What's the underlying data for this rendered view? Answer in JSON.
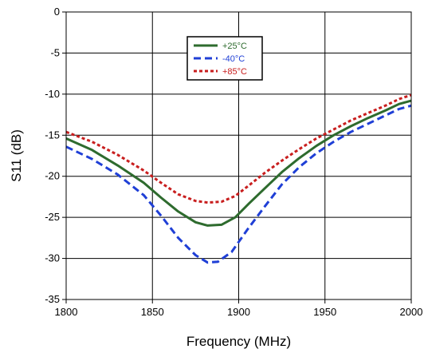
{
  "chart_data": {
    "type": "line",
    "title": "",
    "xlabel": "Frequency (MHz)",
    "ylabel": "S11 (dB)",
    "xlim": [
      1800,
      2000
    ],
    "ylim": [
      -35,
      0
    ],
    "xticks": [
      "1800",
      "1850",
      "1900",
      "1950",
      "2000"
    ],
    "yticks": [
      "0",
      "-5",
      "-10",
      "-15",
      "-20",
      "-25",
      "-30",
      "-35"
    ],
    "grid": true,
    "legend_position": "top-center",
    "series": [
      {
        "name": "+25°C",
        "color": "#2e6b2e",
        "dash": "solid",
        "points": [
          [
            1800,
            -15.4
          ],
          [
            1815,
            -16.8
          ],
          [
            1830,
            -18.7
          ],
          [
            1845,
            -20.8
          ],
          [
            1855,
            -22.6
          ],
          [
            1865,
            -24.3
          ],
          [
            1875,
            -25.6
          ],
          [
            1882,
            -26.0
          ],
          [
            1890,
            -25.9
          ],
          [
            1898,
            -25.0
          ],
          [
            1906,
            -23.3
          ],
          [
            1915,
            -21.5
          ],
          [
            1925,
            -19.5
          ],
          [
            1935,
            -17.8
          ],
          [
            1945,
            -16.3
          ],
          [
            1955,
            -15.0
          ],
          [
            1965,
            -13.9
          ],
          [
            1975,
            -12.9
          ],
          [
            1985,
            -12.0
          ],
          [
            1993,
            -11.2
          ],
          [
            2000,
            -10.8
          ]
        ]
      },
      {
        "name": "-40°C",
        "color": "#1f3fd6",
        "dash": "dashed",
        "points": [
          [
            1800,
            -16.4
          ],
          [
            1815,
            -17.9
          ],
          [
            1830,
            -19.8
          ],
          [
            1845,
            -22.3
          ],
          [
            1855,
            -24.8
          ],
          [
            1865,
            -27.5
          ],
          [
            1875,
            -29.6
          ],
          [
            1882,
            -30.5
          ],
          [
            1888,
            -30.4
          ],
          [
            1896,
            -29.2
          ],
          [
            1905,
            -26.5
          ],
          [
            1915,
            -23.7
          ],
          [
            1925,
            -21.0
          ],
          [
            1935,
            -18.9
          ],
          [
            1945,
            -17.2
          ],
          [
            1955,
            -15.8
          ],
          [
            1965,
            -14.6
          ],
          [
            1975,
            -13.6
          ],
          [
            1985,
            -12.6
          ],
          [
            1993,
            -11.8
          ],
          [
            2000,
            -11.4
          ]
        ]
      },
      {
        "name": "+85°C",
        "color": "#c81e1e",
        "dash": "dotted",
        "points": [
          [
            1800,
            -14.6
          ],
          [
            1815,
            -15.8
          ],
          [
            1830,
            -17.4
          ],
          [
            1845,
            -19.3
          ],
          [
            1855,
            -20.8
          ],
          [
            1865,
            -22.2
          ],
          [
            1875,
            -23.0
          ],
          [
            1882,
            -23.2
          ],
          [
            1890,
            -23.1
          ],
          [
            1898,
            -22.4
          ],
          [
            1906,
            -21.1
          ],
          [
            1915,
            -19.6
          ],
          [
            1925,
            -18.1
          ],
          [
            1935,
            -16.7
          ],
          [
            1945,
            -15.4
          ],
          [
            1955,
            -14.3
          ],
          [
            1965,
            -13.2
          ],
          [
            1975,
            -12.3
          ],
          [
            1985,
            -11.4
          ],
          [
            1993,
            -10.6
          ],
          [
            2000,
            -10.1
          ]
        ]
      }
    ]
  }
}
